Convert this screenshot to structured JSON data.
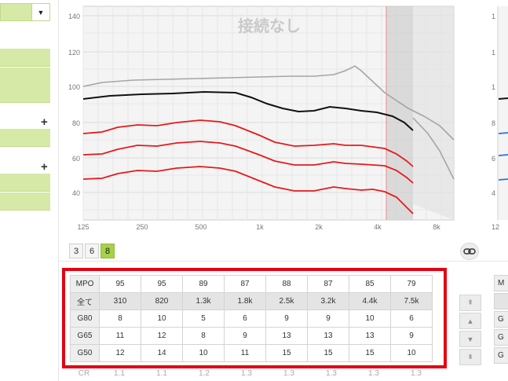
{
  "graph": {
    "y_ticks": [
      "140",
      "120",
      "100",
      "80",
      "60",
      "40"
    ],
    "x_ticks": [
      "125",
      "250",
      "500",
      "1k",
      "2k",
      "4k",
      "8k"
    ],
    "overlay_text": "接続なし",
    "right_y_ticks": [
      "1",
      "1",
      "1",
      "8",
      "6",
      "4"
    ],
    "right_x_tick": "12"
  },
  "channels": {
    "options": [
      "3",
      "6",
      "8"
    ],
    "selected": "8"
  },
  "table": {
    "rows": [
      {
        "label": "MPO",
        "values": [
          "95",
          "95",
          "89",
          "87",
          "88",
          "87",
          "85",
          "79"
        ]
      },
      {
        "label": "全て",
        "values": [
          "310",
          "820",
          "1.3k",
          "1.8k",
          "2.5k",
          "3.2k",
          "4.4k",
          "7.5k"
        ]
      },
      {
        "label": "G80",
        "values": [
          "8",
          "10",
          "5",
          "6",
          "9",
          "9",
          "10",
          "6"
        ]
      },
      {
        "label": "G65",
        "values": [
          "11",
          "12",
          "8",
          "9",
          "13",
          "13",
          "13",
          "9"
        ]
      },
      {
        "label": "G50",
        "values": [
          "12",
          "14",
          "10",
          "11",
          "15",
          "15",
          "15",
          "10"
        ]
      }
    ],
    "cr_row": {
      "label": "CR",
      "values": [
        "1.1",
        "1.1",
        "1.2",
        "1.3",
        "1.3",
        "1.3",
        "1.3",
        "1.3"
      ]
    }
  },
  "side_buttons": [
    "⇞",
    "▲",
    "▼",
    "⇟"
  ],
  "right_stub_labels": [
    "M",
    "",
    "G",
    "G",
    "G"
  ],
  "colors": {
    "accent_green": "#a6d14a",
    "light_green": "#d6e9a6",
    "highlight_red": "#e50012",
    "curve_red": "#e8191b",
    "curve_black": "#111111",
    "curve_gray": "#a5a5a5",
    "curve_blue": "#1e7ad1"
  }
}
